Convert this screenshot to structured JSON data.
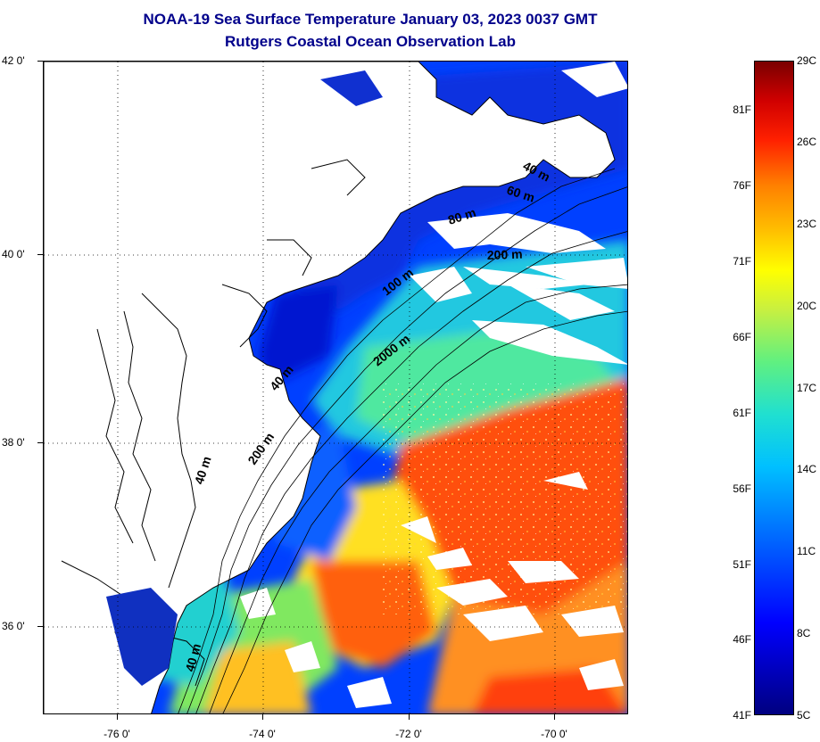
{
  "title": {
    "line1": "NOAA-19 Sea Surface Temperature January 03, 2023 0037 GMT",
    "line2": "Rutgers Coastal Ocean Observation Lab"
  },
  "axes": {
    "lat_labels": [
      "42 0'",
      "40 0'",
      "38 0'",
      "36 0'"
    ],
    "lon_labels": [
      "-76 0'",
      "-74 0'",
      "-72 0'",
      "-70 0'"
    ],
    "lat_range": [
      35,
      42
    ],
    "lon_range": [
      -77,
      -69
    ],
    "grid": "dotted"
  },
  "contours": [
    {
      "label": "40 m"
    },
    {
      "label": "60 m"
    },
    {
      "label": "80 m"
    },
    {
      "label": "200 m"
    },
    {
      "label": "100 m"
    },
    {
      "label": "2000 m"
    },
    {
      "label": "40 m"
    },
    {
      "label": "200 m"
    },
    {
      "label": "40 m"
    },
    {
      "label": "40 m"
    }
  ],
  "colorbar": {
    "fahrenheit": [
      "81F",
      "76F",
      "71F",
      "66F",
      "61F",
      "56F",
      "51F",
      "46F",
      "41F"
    ],
    "celsius": [
      "29C",
      "26C",
      "23C",
      "20C",
      "17C",
      "14C",
      "11C",
      "8C",
      "5C"
    ],
    "min_c": 5,
    "max_c": 29
  },
  "colors": {
    "title": "#00008b",
    "land": "#ffffff",
    "cold": "#0000ff",
    "warm": "#ff4000"
  }
}
